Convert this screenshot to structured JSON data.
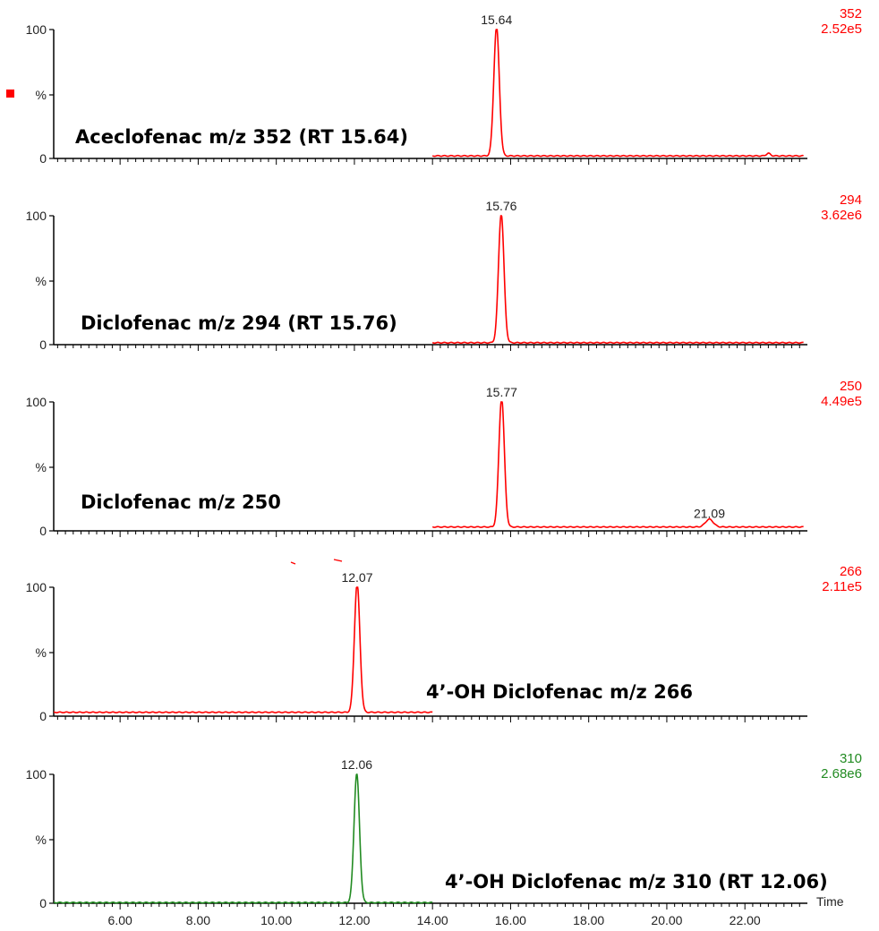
{
  "chart_data": [
    {
      "type": "line",
      "title": "Aceclofenac m/z 352 (RT 15.64)",
      "mz": "352",
      "intensity": "2.52e5",
      "color": "#ff0000",
      "ylabel": "%",
      "ylim": [
        0,
        100
      ],
      "yticks": [
        "100",
        "%",
        "0"
      ],
      "data_range": [
        14.0,
        23.5
      ],
      "baseline": 2,
      "series": [
        {
          "peaks": [
            {
              "rt": 15.64,
              "height": 100,
              "width": 0.07,
              "label": "15.64"
            },
            {
              "rt": 22.6,
              "height": 2,
              "width": 0.05
            }
          ]
        }
      ]
    },
    {
      "type": "line",
      "title": "Diclofenac m/z 294 (RT 15.76)",
      "mz": "294",
      "intensity": "3.62e6",
      "color": "#ff0000",
      "ylabel": "%",
      "ylim": [
        0,
        100
      ],
      "yticks": [
        "100",
        "%",
        "0"
      ],
      "data_range": [
        14.0,
        23.5
      ],
      "baseline": 1.5,
      "series": [
        {
          "peaks": [
            {
              "rt": 15.76,
              "height": 100,
              "width": 0.07,
              "label": "15.76"
            }
          ]
        }
      ]
    },
    {
      "type": "line",
      "title": "Diclofenac m/z 250",
      "mz": "250",
      "intensity": "4.49e5",
      "color": "#ff0000",
      "ylabel": "%",
      "ylim": [
        0,
        100
      ],
      "yticks": [
        "100",
        "%",
        "0"
      ],
      "data_range": [
        14.0,
        23.5
      ],
      "baseline": 3,
      "series": [
        {
          "peaks": [
            {
              "rt": 15.77,
              "height": 100,
              "width": 0.07,
              "label": "15.77"
            },
            {
              "rt": 21.09,
              "height": 6,
              "width": 0.1,
              "label": "21.09"
            }
          ]
        }
      ]
    },
    {
      "type": "line",
      "title": "4’-OH Diclofenac m/z 266",
      "mz": "266",
      "intensity": "2.11e5",
      "color": "#ff0000",
      "ylabel": "%",
      "ylim": [
        0,
        100
      ],
      "yticks": [
        "100",
        "%",
        "0"
      ],
      "data_range": [
        4.3,
        14.0
      ],
      "baseline": 3,
      "series": [
        {
          "peaks": [
            {
              "rt": 12.07,
              "height": 100,
              "width": 0.07,
              "label": "12.07"
            }
          ]
        }
      ]
    },
    {
      "type": "line",
      "title": "4’-OH Diclofenac m/z 310 (RT 12.06)",
      "mz": "310",
      "intensity": "2.68e6",
      "color": "#228b22",
      "ylabel": "%",
      "ylim": [
        0,
        100
      ],
      "yticks": [
        "100",
        "%",
        "0"
      ],
      "data_range": [
        4.3,
        14.0
      ],
      "baseline": 0.5,
      "series": [
        {
          "peaks": [
            {
              "rt": 12.06,
              "height": 100,
              "width": 0.07,
              "label": "12.06"
            }
          ]
        }
      ]
    }
  ],
  "x_axis": {
    "label": "Time",
    "range": [
      4.3,
      23.6
    ],
    "ticks": [
      {
        "value": 6,
        "label": "6.00"
      },
      {
        "value": 8,
        "label": "8.00"
      },
      {
        "value": 10,
        "label": "10.00"
      },
      {
        "value": 12,
        "label": "12.00"
      },
      {
        "value": 14,
        "label": "14.00"
      },
      {
        "value": 16,
        "label": "16.00"
      },
      {
        "value": 18,
        "label": "18.00"
      },
      {
        "value": 20,
        "label": "20.00"
      },
      {
        "value": 22,
        "label": "22.00"
      }
    ]
  },
  "marker_color": "#ff0000"
}
